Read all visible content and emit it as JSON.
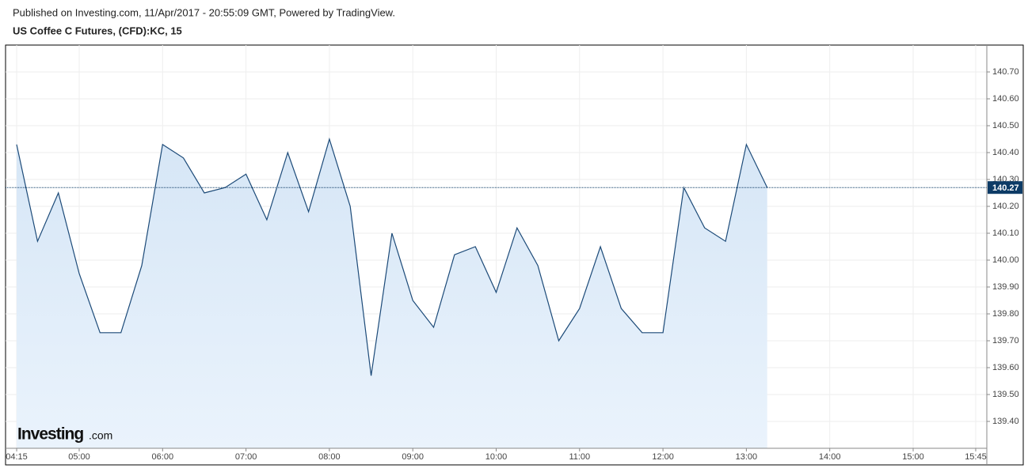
{
  "header": {
    "published": "Published on Investing.com, 11/Apr/2017 - 20:55:09 GMT, Powered by TradingView.",
    "title": "US Coffee C Futures, (CFD):KC, 15"
  },
  "logo": {
    "brand": "Investing",
    "suffix": ".com"
  },
  "chart_data": {
    "type": "area",
    "x": [
      "04:15",
      "04:30",
      "04:45",
      "05:00",
      "05:15",
      "05:30",
      "05:45",
      "06:00",
      "06:15",
      "06:30",
      "06:45",
      "07:00",
      "07:15",
      "07:30",
      "07:45",
      "08:00",
      "08:15",
      "08:30",
      "08:45",
      "09:00",
      "09:15",
      "09:30",
      "09:45",
      "10:00",
      "10:15",
      "10:30",
      "10:45",
      "11:00",
      "11:15",
      "11:30",
      "11:45",
      "12:00",
      "12:15",
      "12:30",
      "12:45",
      "13:00",
      "13:15"
    ],
    "series": [
      {
        "color": "#1c4a78",
        "values": [
          140.43,
          140.07,
          140.25,
          139.95,
          139.73,
          139.73,
          139.98,
          140.43,
          140.38,
          140.25,
          140.27,
          140.32,
          140.15,
          140.4,
          140.18,
          140.45,
          140.2,
          139.57,
          140.1,
          139.85,
          139.75,
          140.02,
          140.05,
          139.88,
          140.12,
          139.98,
          139.7,
          139.82,
          140.05,
          139.82,
          139.73,
          139.73,
          140.27,
          140.12,
          140.07,
          140.43,
          140.27
        ]
      }
    ],
    "last_price": 140.27,
    "xlim": [
      "04:07",
      "15:53"
    ],
    "xticks": [
      "04:15",
      "05:00",
      "06:00",
      "07:00",
      "08:00",
      "09:00",
      "10:00",
      "11:00",
      "12:00",
      "13:00",
      "14:00",
      "15:00",
      "15:45"
    ],
    "ylim": [
      139.3,
      140.8
    ],
    "yticks": [
      {
        "value": 139.4,
        "label": "139.40"
      },
      {
        "value": 139.5,
        "label": "139.50"
      },
      {
        "value": 139.6,
        "label": "139.60"
      },
      {
        "value": 139.7,
        "label": "139.70"
      },
      {
        "value": 139.8,
        "label": "139.80"
      },
      {
        "value": 139.9,
        "label": "139.90"
      },
      {
        "value": 140,
        "label": "140.00"
      },
      {
        "value": 140.1,
        "label": "140.10"
      },
      {
        "value": 140.2,
        "label": "140.20"
      },
      {
        "value": 140.3,
        "label": "140.30"
      },
      {
        "value": 140.4,
        "label": "140.40"
      },
      {
        "value": 140.5,
        "label": "140.50"
      },
      {
        "value": 140.6,
        "label": "140.60"
      },
      {
        "value": 140.7,
        "label": "140.70"
      }
    ],
    "grid": true
  }
}
